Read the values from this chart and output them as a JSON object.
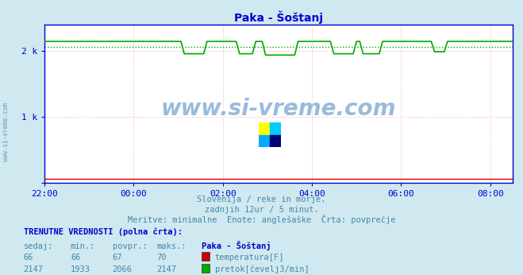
{
  "title": "Paka - Šoštanj",
  "title_color": "#0000cc",
  "bg_color": "#d0e8f0",
  "plot_bg_color": "#ffffff",
  "grid_color": "#ffaaaa",
  "x_ticks_labels": [
    "22:00",
    "00:00",
    "02:00",
    "04:00",
    "06:00",
    "08:00"
  ],
  "x_ticks_positions": [
    0,
    2,
    4,
    6,
    8,
    10
  ],
  "y_ticks": [
    0,
    1000,
    2000
  ],
  "y_tick_labels": [
    "",
    "1 k",
    "2 k"
  ],
  "y_min": 0,
  "y_max": 2400,
  "x_min": 0,
  "x_max": 10.5,
  "tick_color": "#0000cc",
  "watermark_text": "www.si-vreme.com",
  "watermark_color": "#99bbdd",
  "subtitle_line1": "Slovenija / reke in morje.",
  "subtitle_line2": "zadnjih 12ur / 5 minut.",
  "subtitle_line3": "Meritve: minimalne  Enote: anglešaške  Črta: povprečje",
  "subtitle_color": "#4488aa",
  "footer_title": "TRENUTNE VREDNOSTI (polna črta):",
  "footer_col_headers": [
    "sedaj:",
    "min.:",
    "povpr.:",
    "maks.:",
    "Paka - Šoštanj"
  ],
  "footer_row1": [
    "66",
    "66",
    "67",
    "70"
  ],
  "footer_row2": [
    "2147",
    "1933",
    "2066",
    "2147"
  ],
  "legend1_label": "temperatura[F]",
  "legend1_color": "#cc0000",
  "legend2_label": "pretok[čevelj3/min]",
  "legend2_color": "#00aa00",
  "avg_line_value": 2066,
  "avg_line_color": "#00aa00",
  "temp_line_color": "#cc0000",
  "border_color": "#0000cc",
  "arrow_color": "#cc0000",
  "side_watermark": "www.si-vreme.com",
  "side_watermark_color": "#6699bb"
}
